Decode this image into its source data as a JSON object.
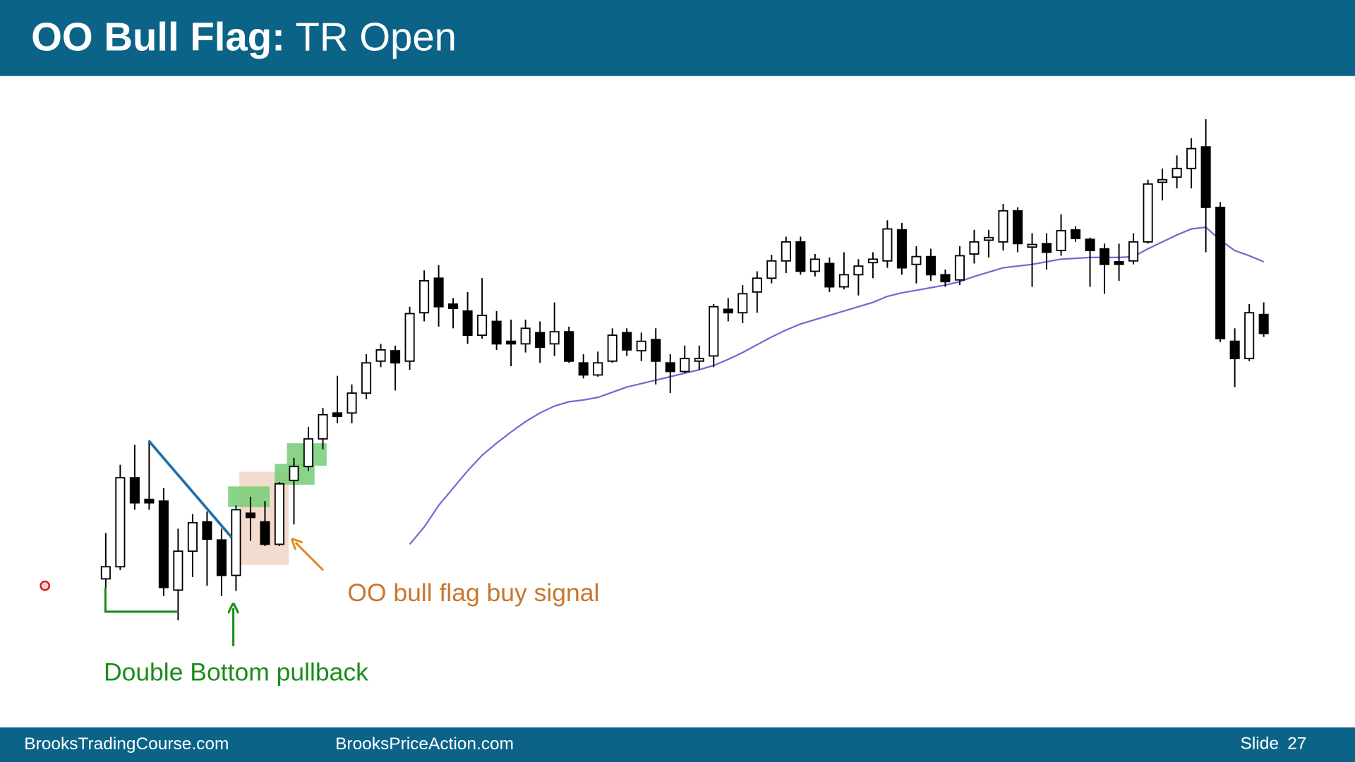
{
  "header": {
    "title_bold": "OO Bull Flag:",
    "title": "TR Open"
  },
  "chart_data": {
    "type": "candlestick",
    "annotations": {
      "signal": "OO bull flag buy signal",
      "pullback": "Double Bottom pullback"
    },
    "ylim": [
      158,
      912
    ],
    "up_color": "#ffffff",
    "down_color": "#000000",
    "open": [
      330,
      344,
      447,
      422,
      420,
      317,
      362,
      396,
      375,
      334,
      406,
      396,
      370,
      444,
      460,
      492,
      522,
      522,
      545,
      582,
      594,
      582,
      638,
      678,
      648,
      640,
      612,
      628,
      605,
      602,
      615,
      602,
      616,
      580,
      566,
      582,
      615,
      594,
      607,
      580,
      570,
      582,
      588,
      642,
      638,
      662,
      678,
      698,
      720,
      686,
      695,
      668,
      682,
      696,
      698,
      734,
      694,
      703,
      682,
      676,
      706,
      722,
      720,
      756,
      714,
      718,
      710,
      734,
      723,
      712,
      697,
      698,
      720,
      789,
      795,
      805,
      830,
      760,
      605,
      585,
      636
    ],
    "high": [
      383,
      462,
      485,
      490,
      435,
      388,
      405,
      408,
      388,
      415,
      425,
      420,
      442,
      470,
      506,
      528,
      565,
      555,
      590,
      602,
      600,
      645,
      687,
      693,
      655,
      662,
      678,
      640,
      630,
      630,
      628,
      650,
      622,
      590,
      593,
      620,
      620,
      615,
      620,
      590,
      600,
      600,
      648,
      655,
      670,
      686,
      705,
      726,
      726,
      706,
      702,
      708,
      700,
      708,
      745,
      742,
      715,
      712,
      688,
      715,
      734,
      734,
      764,
      760,
      730,
      730,
      752,
      738,
      725,
      718,
      718,
      730,
      792,
      805,
      820,
      840,
      862,
      766,
      620,
      648,
      650
    ],
    "low": [
      318,
      340,
      410,
      410,
      310,
      282,
      332,
      322,
      310,
      316,
      374,
      368,
      368,
      393,
      455,
      480,
      510,
      510,
      538,
      575,
      548,
      572,
      628,
      622,
      620,
      602,
      608,
      595,
      576,
      592,
      580,
      588,
      580,
      562,
      564,
      580,
      588,
      582,
      555,
      545,
      568,
      572,
      575,
      628,
      626,
      638,
      672,
      684,
      682,
      680,
      662,
      665,
      658,
      678,
      690,
      682,
      672,
      675,
      668,
      670,
      695,
      702,
      710,
      708,
      668,
      688,
      704,
      720,
      668,
      660,
      675,
      694,
      718,
      768,
      782,
      782,
      708,
      604,
      552,
      582,
      610
    ],
    "close": [
      344,
      447,
      418,
      418,
      320,
      362,
      395,
      376,
      334,
      410,
      401,
      370,
      440,
      460,
      492,
      520,
      518,
      545,
      580,
      595,
      580,
      637,
      675,
      645,
      643,
      612,
      635,
      602,
      602,
      620,
      598,
      616,
      582,
      566,
      580,
      612,
      595,
      605,
      582,
      570,
      585,
      585,
      645,
      638,
      660,
      678,
      698,
      720,
      686,
      700,
      668,
      682,
      692,
      700,
      735,
      690,
      703,
      682,
      674,
      704,
      720,
      725,
      756,
      718,
      717,
      708,
      733,
      724,
      710,
      694,
      694,
      720,
      787,
      792,
      805,
      828,
      760,
      608,
      585,
      638,
      614
    ],
    "moving_average": {
      "color": "#6b6bd6",
      "values": [
        null,
        null,
        null,
        null,
        null,
        null,
        null,
        null,
        null,
        null,
        null,
        null,
        null,
        null,
        null,
        null,
        null,
        null,
        null,
        null,
        null,
        370,
        390,
        415,
        435,
        455,
        473,
        487,
        500,
        512,
        522,
        530,
        535,
        537,
        540,
        546,
        552,
        556,
        560,
        564,
        568,
        572,
        577,
        584,
        592,
        601,
        610,
        618,
        625,
        630,
        635,
        640,
        645,
        650,
        657,
        661,
        664,
        667,
        670,
        674,
        680,
        685,
        690,
        692,
        694,
        697,
        700,
        701,
        702,
        702,
        702,
        703,
        712,
        720,
        728,
        735,
        737,
        722,
        710,
        704,
        697
      ]
    }
  },
  "footer": {
    "left": "BrooksTradingCourse.com",
    "center": "BrooksPriceAction.com",
    "slide_label": "Slide",
    "slide_number": 27
  }
}
